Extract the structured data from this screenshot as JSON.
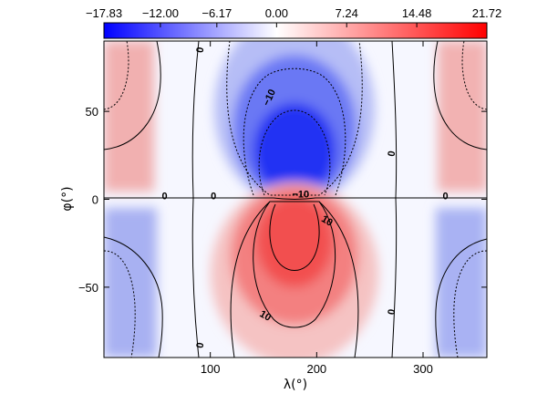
{
  "chart_data": {
    "type": "heatmap",
    "title": "",
    "xlabel": "λ(°)",
    "ylabel": "φ(°)",
    "xlim": [
      0,
      360
    ],
    "ylim": [
      -90,
      90
    ],
    "x_ticks": [
      100,
      200,
      300
    ],
    "y_ticks": [
      -50,
      0,
      50
    ],
    "colorbar": {
      "position": "top",
      "min": -17.83,
      "max": 21.72,
      "tick_values": [
        -17.83,
        -12.0,
        -6.17,
        0.0,
        7.24,
        14.48,
        21.72
      ],
      "tick_labels": [
        "−17.83",
        "−12.00",
        "−6.17",
        "0.00",
        "7.24",
        "14.48",
        "21.72"
      ],
      "colors": {
        "min": "#0000ff",
        "zero": "#ffffff",
        "max": "#ff0000"
      }
    },
    "contour_labels": [
      {
        "text": "0",
        "lambda": 57,
        "phi": 2
      },
      {
        "text": "0",
        "lambda": 103,
        "phi": 2
      },
      {
        "text": "0",
        "lambda": 321,
        "phi": 2
      },
      {
        "text": "0",
        "lambda": 90,
        "phi": 85
      },
      {
        "text": "0",
        "lambda": 90,
        "phi": -83
      },
      {
        "text": "0",
        "lambda": 270,
        "phi": 26
      },
      {
        "text": "0",
        "lambda": 270,
        "phi": -64
      },
      {
        "text": "−10",
        "lambda": 155,
        "phi": 58
      },
      {
        "text": "−10",
        "lambda": 185,
        "phi": 3
      },
      {
        "text": "10",
        "lambda": 210,
        "phi": -12
      },
      {
        "text": "10",
        "lambda": 152,
        "phi": -66
      }
    ]
  }
}
